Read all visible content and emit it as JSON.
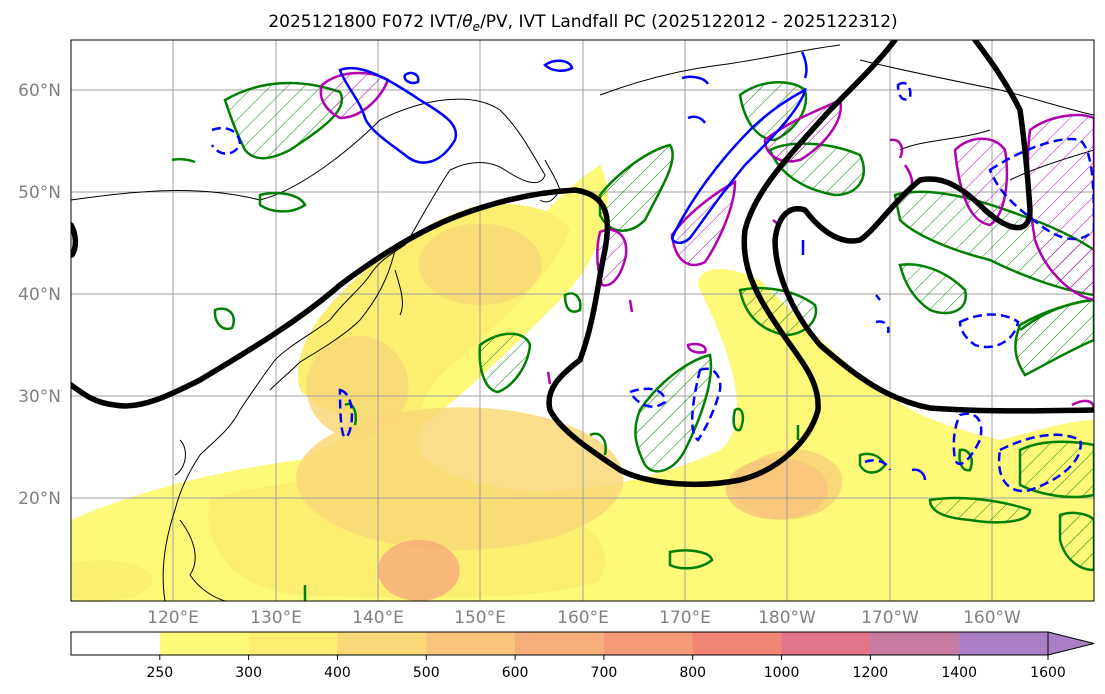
{
  "chart_data": {
    "type": "heatmap",
    "title_run": "2025121800 F072 IVT/",
    "title_theta": "θ",
    "title_sub": "e",
    "title_rest": "/PV, IVT Landfall PC (2025122012 - 2025122312)",
    "lon_ticks": [
      "120°E",
      "130°E",
      "140°E",
      "150°E",
      "160°E",
      "170°E",
      "180°W",
      "170°W",
      "160°W"
    ],
    "lat_ticks": [
      "60°N",
      "50°N",
      "40°N",
      "30°N",
      "20°N"
    ],
    "lon_range": [
      110,
      210
    ],
    "lat_range": [
      10,
      65
    ],
    "grid": true,
    "colorbar": {
      "levels": [
        "250",
        "300",
        "400",
        "500",
        "600",
        "700",
        "800",
        "1000",
        "1200",
        "1400",
        "1600"
      ],
      "colors": [
        "#ffffff",
        "#fff97a",
        "#fbee70",
        "#f9d877",
        "#f8c47c",
        "#f6ae7a",
        "#f59a78",
        "#f28476",
        "#e17488",
        "#c97aa1",
        "#aa7fc6"
      ],
      "extend": "max"
    },
    "ivt_blobs": [
      {
        "lon": 148,
        "lat": 22,
        "rx": 16,
        "ry": 7,
        "level": 3
      },
      {
        "lon": 144,
        "lat": 13,
        "rx": 4,
        "ry": 3,
        "level": 5
      },
      {
        "lon": 138,
        "lat": 31,
        "rx": 5,
        "ry": 5,
        "level": 3
      },
      {
        "lon": 150,
        "lat": 43,
        "rx": 6,
        "ry": 4,
        "level": 3
      },
      {
        "lon": 179,
        "lat": 21,
        "rx": 5,
        "ry": 3,
        "level": 4
      },
      {
        "lon": 113,
        "lat": 12,
        "rx": 5,
        "ry": 2,
        "level": 2
      }
    ]
  }
}
